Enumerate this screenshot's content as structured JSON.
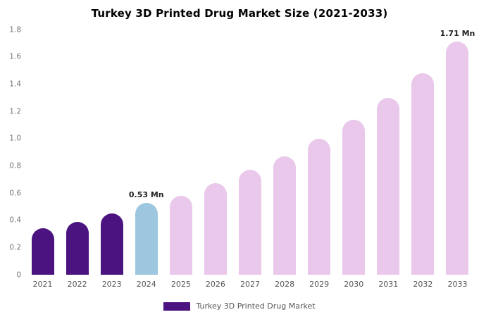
{
  "chart_data": {
    "type": "bar",
    "title": "Turkey 3D Printed Drug Market Size (2021-2033)",
    "categories": [
      "2021",
      "2022",
      "2023",
      "2024",
      "2025",
      "2026",
      "2027",
      "2028",
      "2029",
      "2030",
      "2031",
      "2032",
      "2033"
    ],
    "values": [
      0.34,
      0.39,
      0.45,
      0.53,
      0.58,
      0.67,
      0.77,
      0.87,
      1.0,
      1.14,
      1.3,
      1.48,
      1.71
    ],
    "unit": "Mn",
    "xlabel": "",
    "ylabel": "",
    "ylim": [
      0,
      1.8
    ],
    "yticks": [
      "0",
      "0.2",
      "0.4",
      "0.6",
      "0.8",
      "1.0",
      "1.2",
      "1.4",
      "1.6",
      "1.8"
    ],
    "grid": false,
    "bar_colors": [
      "#4b1380",
      "#4b1380",
      "#4b1380",
      "#9dc6df",
      "#e9c8eb",
      "#e9c8eb",
      "#e9c8eb",
      "#e9c8eb",
      "#e9c8eb",
      "#e9c8eb",
      "#e9c8eb",
      "#e9c8eb",
      "#e9c8eb"
    ],
    "annotations": [
      {
        "category": "2024",
        "text": "0.53 Mn"
      },
      {
        "category": "2033",
        "text": "1.71 Mn"
      }
    ],
    "legend": {
      "label": "Turkey 3D Printed Drug Market",
      "swatch_color": "#4b1380",
      "position": "bottom"
    }
  }
}
